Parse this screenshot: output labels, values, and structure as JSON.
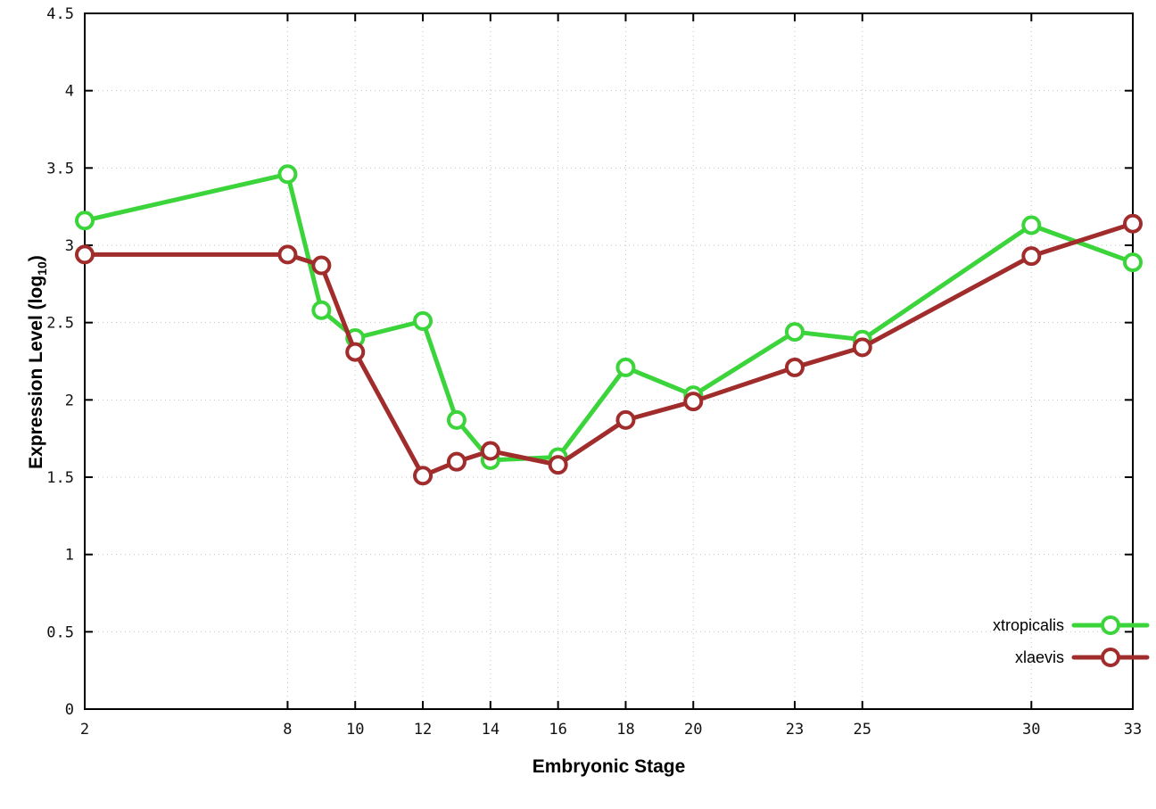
{
  "chart_data": {
    "type": "line",
    "title": "",
    "xlabel": "Embryonic Stage",
    "ylabel": "Expression Level (log10)",
    "ylabel_parts": {
      "base": "Expression Level (log",
      "sub": "10",
      "close": ")"
    },
    "xlim": [
      2,
      33
    ],
    "ylim": [
      0,
      4.5
    ],
    "x_ticks": [
      2,
      8,
      10,
      12,
      14,
      16,
      18,
      20,
      23,
      25,
      30,
      33
    ],
    "y_ticks": [
      0,
      0.5,
      1,
      1.5,
      2,
      2.5,
      3,
      3.5,
      4,
      4.5
    ],
    "grid": true,
    "grid_style": "dotted",
    "legend_position": "bottom-right",
    "background_color": "#ffffff",
    "x": [
      2,
      8,
      9,
      10,
      12,
      13,
      14,
      16,
      18,
      20,
      23,
      25,
      30,
      33
    ],
    "series": [
      {
        "name": "xtropicalis",
        "color": "#3bd43b",
        "marker": "open-circle",
        "values": [
          3.16,
          3.46,
          2.58,
          2.4,
          2.51,
          1.87,
          1.61,
          1.63,
          2.21,
          2.03,
          2.44,
          2.39,
          3.13,
          2.89
        ]
      },
      {
        "name": "xlaevis",
        "color": "#a02c2c",
        "marker": "open-circle",
        "values": [
          2.94,
          2.94,
          2.87,
          2.31,
          1.51,
          1.6,
          1.67,
          1.58,
          1.87,
          1.99,
          2.21,
          2.34,
          2.93,
          3.14
        ]
      }
    ]
  }
}
